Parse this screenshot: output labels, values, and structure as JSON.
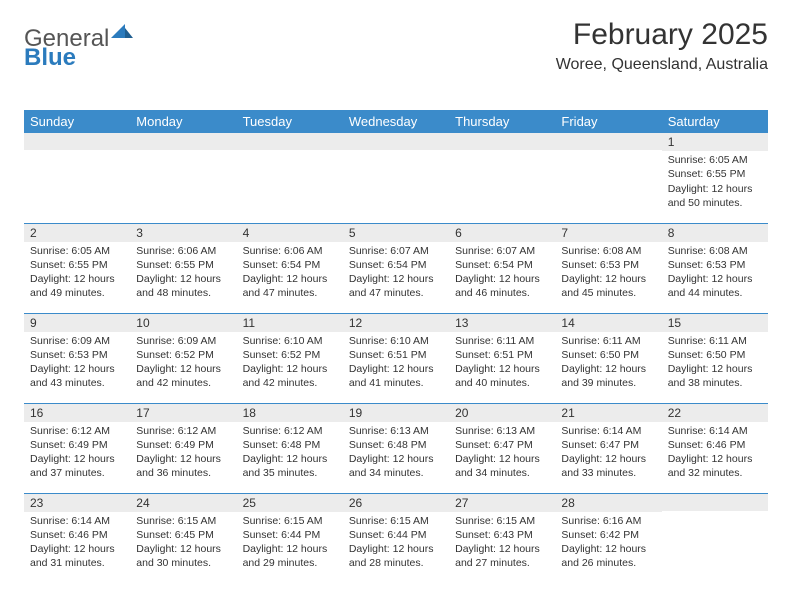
{
  "brand": {
    "general": "General",
    "blue": "Blue"
  },
  "header": {
    "title": "February 2025",
    "location": "Woree, Queensland, Australia"
  },
  "colors": {
    "header_bg": "#3b8bca",
    "header_text": "#ffffff",
    "daynum_bg": "#ececec",
    "border": "#3b8bca",
    "text": "#333333",
    "brand_blue": "#2b7bbd"
  },
  "weekdays": [
    "Sunday",
    "Monday",
    "Tuesday",
    "Wednesday",
    "Thursday",
    "Friday",
    "Saturday"
  ],
  "weeks": [
    [
      {
        "n": "",
        "sr": "",
        "ss": "",
        "dl": ""
      },
      {
        "n": "",
        "sr": "",
        "ss": "",
        "dl": ""
      },
      {
        "n": "",
        "sr": "",
        "ss": "",
        "dl": ""
      },
      {
        "n": "",
        "sr": "",
        "ss": "",
        "dl": ""
      },
      {
        "n": "",
        "sr": "",
        "ss": "",
        "dl": ""
      },
      {
        "n": "",
        "sr": "",
        "ss": "",
        "dl": ""
      },
      {
        "n": "1",
        "sr": "Sunrise: 6:05 AM",
        "ss": "Sunset: 6:55 PM",
        "dl": "Daylight: 12 hours and 50 minutes."
      }
    ],
    [
      {
        "n": "2",
        "sr": "Sunrise: 6:05 AM",
        "ss": "Sunset: 6:55 PM",
        "dl": "Daylight: 12 hours and 49 minutes."
      },
      {
        "n": "3",
        "sr": "Sunrise: 6:06 AM",
        "ss": "Sunset: 6:55 PM",
        "dl": "Daylight: 12 hours and 48 minutes."
      },
      {
        "n": "4",
        "sr": "Sunrise: 6:06 AM",
        "ss": "Sunset: 6:54 PM",
        "dl": "Daylight: 12 hours and 47 minutes."
      },
      {
        "n": "5",
        "sr": "Sunrise: 6:07 AM",
        "ss": "Sunset: 6:54 PM",
        "dl": "Daylight: 12 hours and 47 minutes."
      },
      {
        "n": "6",
        "sr": "Sunrise: 6:07 AM",
        "ss": "Sunset: 6:54 PM",
        "dl": "Daylight: 12 hours and 46 minutes."
      },
      {
        "n": "7",
        "sr": "Sunrise: 6:08 AM",
        "ss": "Sunset: 6:53 PM",
        "dl": "Daylight: 12 hours and 45 minutes."
      },
      {
        "n": "8",
        "sr": "Sunrise: 6:08 AM",
        "ss": "Sunset: 6:53 PM",
        "dl": "Daylight: 12 hours and 44 minutes."
      }
    ],
    [
      {
        "n": "9",
        "sr": "Sunrise: 6:09 AM",
        "ss": "Sunset: 6:53 PM",
        "dl": "Daylight: 12 hours and 43 minutes."
      },
      {
        "n": "10",
        "sr": "Sunrise: 6:09 AM",
        "ss": "Sunset: 6:52 PM",
        "dl": "Daylight: 12 hours and 42 minutes."
      },
      {
        "n": "11",
        "sr": "Sunrise: 6:10 AM",
        "ss": "Sunset: 6:52 PM",
        "dl": "Daylight: 12 hours and 42 minutes."
      },
      {
        "n": "12",
        "sr": "Sunrise: 6:10 AM",
        "ss": "Sunset: 6:51 PM",
        "dl": "Daylight: 12 hours and 41 minutes."
      },
      {
        "n": "13",
        "sr": "Sunrise: 6:11 AM",
        "ss": "Sunset: 6:51 PM",
        "dl": "Daylight: 12 hours and 40 minutes."
      },
      {
        "n": "14",
        "sr": "Sunrise: 6:11 AM",
        "ss": "Sunset: 6:50 PM",
        "dl": "Daylight: 12 hours and 39 minutes."
      },
      {
        "n": "15",
        "sr": "Sunrise: 6:11 AM",
        "ss": "Sunset: 6:50 PM",
        "dl": "Daylight: 12 hours and 38 minutes."
      }
    ],
    [
      {
        "n": "16",
        "sr": "Sunrise: 6:12 AM",
        "ss": "Sunset: 6:49 PM",
        "dl": "Daylight: 12 hours and 37 minutes."
      },
      {
        "n": "17",
        "sr": "Sunrise: 6:12 AM",
        "ss": "Sunset: 6:49 PM",
        "dl": "Daylight: 12 hours and 36 minutes."
      },
      {
        "n": "18",
        "sr": "Sunrise: 6:12 AM",
        "ss": "Sunset: 6:48 PM",
        "dl": "Daylight: 12 hours and 35 minutes."
      },
      {
        "n": "19",
        "sr": "Sunrise: 6:13 AM",
        "ss": "Sunset: 6:48 PM",
        "dl": "Daylight: 12 hours and 34 minutes."
      },
      {
        "n": "20",
        "sr": "Sunrise: 6:13 AM",
        "ss": "Sunset: 6:47 PM",
        "dl": "Daylight: 12 hours and 34 minutes."
      },
      {
        "n": "21",
        "sr": "Sunrise: 6:14 AM",
        "ss": "Sunset: 6:47 PM",
        "dl": "Daylight: 12 hours and 33 minutes."
      },
      {
        "n": "22",
        "sr": "Sunrise: 6:14 AM",
        "ss": "Sunset: 6:46 PM",
        "dl": "Daylight: 12 hours and 32 minutes."
      }
    ],
    [
      {
        "n": "23",
        "sr": "Sunrise: 6:14 AM",
        "ss": "Sunset: 6:46 PM",
        "dl": "Daylight: 12 hours and 31 minutes."
      },
      {
        "n": "24",
        "sr": "Sunrise: 6:15 AM",
        "ss": "Sunset: 6:45 PM",
        "dl": "Daylight: 12 hours and 30 minutes."
      },
      {
        "n": "25",
        "sr": "Sunrise: 6:15 AM",
        "ss": "Sunset: 6:44 PM",
        "dl": "Daylight: 12 hours and 29 minutes."
      },
      {
        "n": "26",
        "sr": "Sunrise: 6:15 AM",
        "ss": "Sunset: 6:44 PM",
        "dl": "Daylight: 12 hours and 28 minutes."
      },
      {
        "n": "27",
        "sr": "Sunrise: 6:15 AM",
        "ss": "Sunset: 6:43 PM",
        "dl": "Daylight: 12 hours and 27 minutes."
      },
      {
        "n": "28",
        "sr": "Sunrise: 6:16 AM",
        "ss": "Sunset: 6:42 PM",
        "dl": "Daylight: 12 hours and 26 minutes."
      },
      {
        "n": "",
        "sr": "",
        "ss": "",
        "dl": ""
      }
    ]
  ]
}
